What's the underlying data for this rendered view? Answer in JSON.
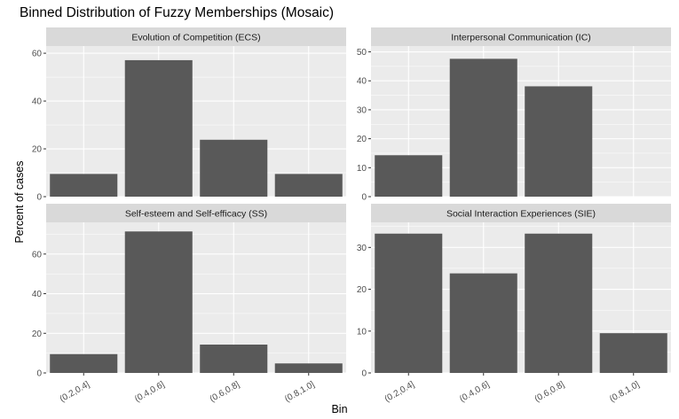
{
  "chart_data": {
    "type": "bar",
    "title": "Binned Distribution of Fuzzy Memberships (Mosaic)",
    "xlabel": "Bin",
    "ylabel": "Percent of cases",
    "categories": [
      "(0.2,0.4]",
      "(0.4,0.6]",
      "(0.6,0.8]",
      "(0.8,1.0]"
    ],
    "colors": {
      "bar": "#595959",
      "panel": "#ebebeb",
      "strip": "#d9d9d9",
      "grid": "#ffffff"
    },
    "facets": [
      {
        "name": "Evolution of Competition (ECS)",
        "values": [
          9.5,
          57.1,
          23.8,
          9.5
        ],
        "ylim": [
          0,
          63
        ],
        "yticks": [
          0,
          20,
          40,
          60
        ]
      },
      {
        "name": "Interpersonal Communication (IC)",
        "values": [
          14.3,
          47.6,
          38.1,
          0
        ],
        "ylim": [
          0,
          52
        ],
        "yticks": [
          0,
          10,
          20,
          30,
          40,
          50
        ]
      },
      {
        "name": "Self-esteem and Self-efficacy (SS)",
        "values": [
          9.5,
          71.4,
          14.3,
          4.8
        ],
        "ylim": [
          0,
          76
        ],
        "yticks": [
          0,
          20,
          40,
          60
        ]
      },
      {
        "name": "Social Interaction Experiences (SIE)",
        "values": [
          33.3,
          23.8,
          33.3,
          9.5
        ],
        "ylim": [
          0,
          36
        ],
        "yticks": [
          0,
          10,
          20,
          30
        ]
      }
    ]
  }
}
